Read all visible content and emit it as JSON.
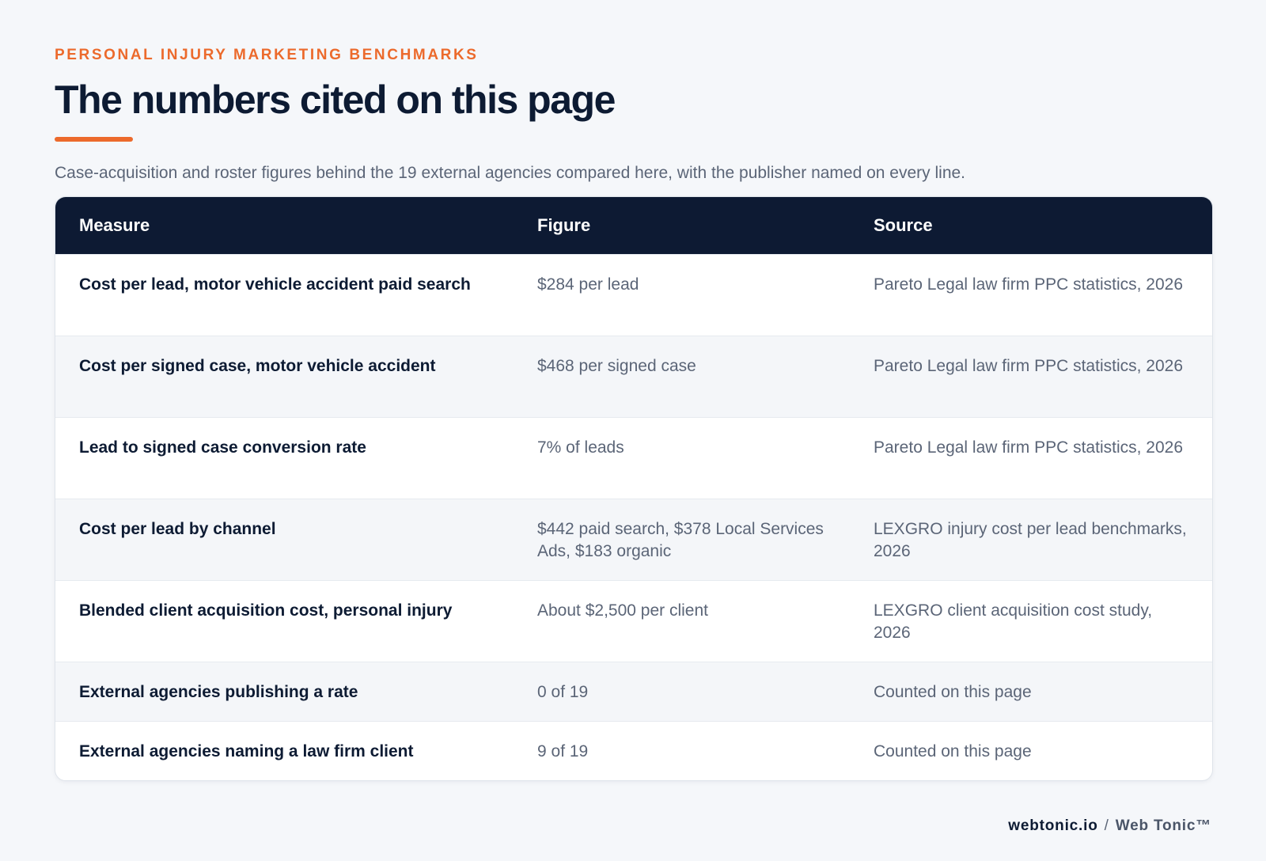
{
  "header": {
    "eyebrow": "PERSONAL INJURY MARKETING BENCHMARKS",
    "title": "The numbers cited on this page",
    "subtitle": "Case-acquisition and roster figures behind the 19 external agencies compared here, with the publisher named on every line."
  },
  "table": {
    "columns": [
      "Measure",
      "Figure",
      "Source"
    ],
    "rows": [
      {
        "measure": "Cost per lead, motor vehicle accident paid search",
        "figure": "$284 per lead",
        "source": "Pareto Legal law firm PPC statistics, 2026"
      },
      {
        "measure": "Cost per signed case, motor vehicle accident",
        "figure": "$468 per signed case",
        "source": "Pareto Legal law firm PPC statistics, 2026"
      },
      {
        "measure": "Lead to signed case conversion rate",
        "figure": "7% of leads",
        "source": "Pareto Legal law firm PPC statistics, 2026"
      },
      {
        "measure": "Cost per lead by channel",
        "figure": "$442 paid search, $378 Local Services Ads, $183 organic",
        "source": "LEXGRO injury cost per lead benchmarks, 2026"
      },
      {
        "measure": "Blended client acquisition cost, personal injury",
        "figure": "About $2,500 per client",
        "source": "LEXGRO client acquisition cost study, 2026"
      },
      {
        "measure": "External agencies publishing a rate",
        "figure": "0 of 19",
        "source": "Counted on this page"
      },
      {
        "measure": "External agencies naming a law firm client",
        "figure": "9 of 19",
        "source": "Counted on this page"
      }
    ]
  },
  "footer": {
    "domain": "webtonic.io",
    "separator": "/",
    "brand": "Web Tonic™"
  },
  "colors": {
    "accent": "#ec6a2c",
    "navy": "#0d1a33",
    "muted_text": "#5b6577",
    "background": "#f5f7fa"
  }
}
